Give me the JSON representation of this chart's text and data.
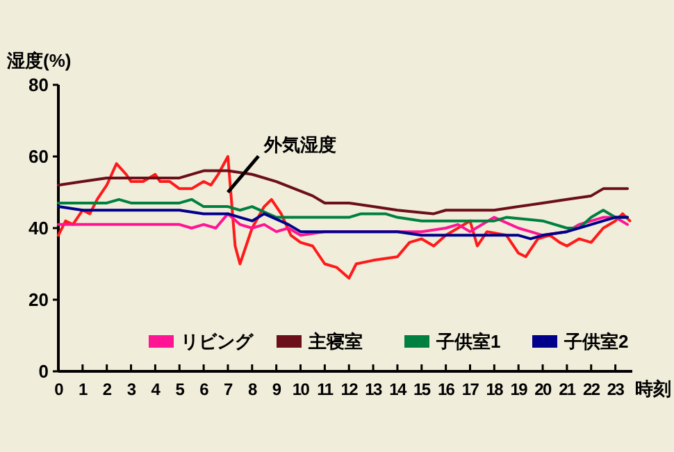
{
  "chart_data": {
    "type": "line",
    "ylabel": "湿度(%)",
    "xlabel": "時刻",
    "xlim": [
      0,
      23.7
    ],
    "ylim": [
      0,
      80
    ],
    "xticks": [
      0,
      1,
      2,
      3,
      4,
      5,
      6,
      7,
      8,
      9,
      10,
      11,
      12,
      13,
      14,
      15,
      16,
      17,
      18,
      19,
      20,
      21,
      22,
      23
    ],
    "yticks": [
      0,
      20,
      40,
      60,
      80
    ],
    "grid": false,
    "legend": "bottom right",
    "marker": "none",
    "line_style": "solid",
    "annotations": [
      {
        "text": "外気湿度",
        "x": 7,
        "y": 50
      }
    ],
    "series": [
      {
        "color": "#ff1a1a",
        "x": [
          0,
          0.3,
          0.6,
          1,
          1.3,
          1.6,
          2,
          2.4,
          2.8,
          3,
          3.5,
          4,
          4.2,
          4.6,
          5,
          5.5,
          6,
          6.3,
          6.6,
          7,
          7.3,
          7.5,
          8,
          8.5,
          8.8,
          9.2,
          9.6,
          10,
          10.5,
          11,
          11.5,
          12,
          12.3,
          13,
          14,
          14.5,
          15,
          15.5,
          16,
          16.5,
          17,
          17.3,
          17.7,
          18.5,
          19,
          19.3,
          19.8,
          20.3,
          20.7,
          21,
          21.5,
          22,
          22.5,
          23,
          23.3,
          23.6
        ],
        "values": [
          38,
          42,
          41,
          45,
          44,
          48,
          52,
          58,
          55,
          53,
          53,
          55,
          53,
          53,
          51,
          51,
          53,
          52,
          55,
          60,
          35,
          30,
          40,
          46,
          48,
          44,
          38,
          36,
          35,
          30,
          29,
          26,
          30,
          31,
          32,
          36,
          37,
          35,
          38,
          40,
          42,
          35,
          39,
          38,
          33,
          32,
          37,
          38,
          36,
          35,
          37,
          36,
          40,
          42,
          44,
          42
        ]
      },
      {
        "name": "リビング",
        "color": "#ff1493",
        "x": [
          0,
          5,
          5.5,
          6,
          6.5,
          7,
          7.5,
          8,
          8.5,
          9,
          9.5,
          10,
          11,
          15,
          16,
          16.5,
          17,
          18,
          19,
          19.5,
          20,
          21,
          21.5,
          22.5,
          23,
          23.5
        ],
        "values": [
          41,
          41,
          40,
          41,
          40,
          44,
          41,
          40,
          41,
          39,
          40,
          38,
          39,
          39,
          40,
          41,
          39,
          43,
          40,
          39,
          38,
          39,
          41,
          43,
          43,
          41
        ]
      },
      {
        "name": "主寝室",
        "color": "#6b0f1a",
        "x": [
          0,
          1,
          2,
          5,
          6,
          7,
          8,
          9,
          10.5,
          11,
          12,
          13,
          14,
          15.5,
          16,
          18,
          19,
          20,
          21,
          22,
          22.5,
          23.5
        ],
        "values": [
          52,
          53,
          54,
          54,
          56,
          56,
          55,
          53,
          49,
          47,
          47,
          46,
          45,
          44,
          45,
          45,
          46,
          47,
          48,
          49,
          51,
          51
        ]
      },
      {
        "name": "子供室1",
        "color": "#008040",
        "x": [
          0,
          2,
          2.5,
          3,
          5,
          5.5,
          6,
          7,
          7.5,
          8,
          9,
          10,
          12,
          12.5,
          13.5,
          14,
          15,
          18,
          18.5,
          20,
          21,
          21.5,
          22,
          22.5,
          23,
          23.5
        ],
        "values": [
          47,
          47,
          48,
          47,
          47,
          48,
          46,
          46,
          45,
          46,
          43,
          43,
          43,
          44,
          44,
          43,
          42,
          42,
          43,
          42,
          40,
          40,
          43,
          45,
          43,
          43
        ]
      },
      {
        "name": "子供室2",
        "color": "#00008b",
        "x": [
          0,
          1,
          5,
          6,
          7,
          7.5,
          8,
          8.5,
          9.5,
          10,
          14,
          15,
          19,
          19.5,
          20,
          21,
          22,
          22.5,
          23,
          23.5
        ],
        "values": [
          46,
          45,
          45,
          44,
          44,
          43,
          42,
          44,
          41,
          39,
          39,
          38,
          38,
          37,
          38,
          39,
          41,
          42,
          43,
          43
        ]
      }
    ]
  }
}
